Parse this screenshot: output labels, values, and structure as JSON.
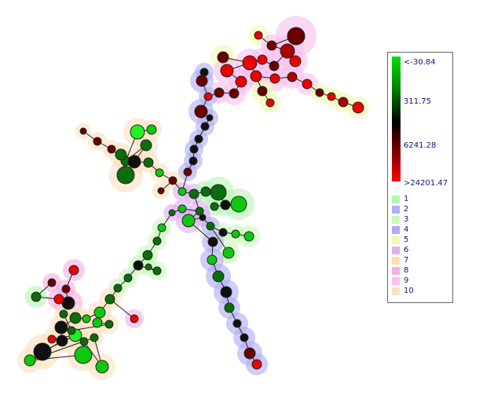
{
  "legend": {
    "gradient_labels": [
      "<-30.84",
      "311.75",
      "6241.28",
      ">24201.47"
    ],
    "gradient_colors": [
      "#00e000",
      "#007800",
      "#000000",
      "#6a0000",
      "#ff0000"
    ],
    "clusters": [
      {
        "label": "1",
        "color": "#b6f5b6"
      },
      {
        "label": "2",
        "color": "#b0b0f2"
      },
      {
        "label": "3",
        "color": "#c8f8bc"
      },
      {
        "label": "4",
        "color": "#b0acf4"
      },
      {
        "label": "5",
        "color": "#f0fab0"
      },
      {
        "label": "6",
        "color": "#dcb0f4"
      },
      {
        "label": "7",
        "color": "#fcdcb0"
      },
      {
        "label": "8",
        "color": "#f4b0e2"
      },
      {
        "label": "9",
        "color": "#f8c0ee"
      },
      {
        "label": "10",
        "color": "#fae2c0"
      }
    ]
  }
}
